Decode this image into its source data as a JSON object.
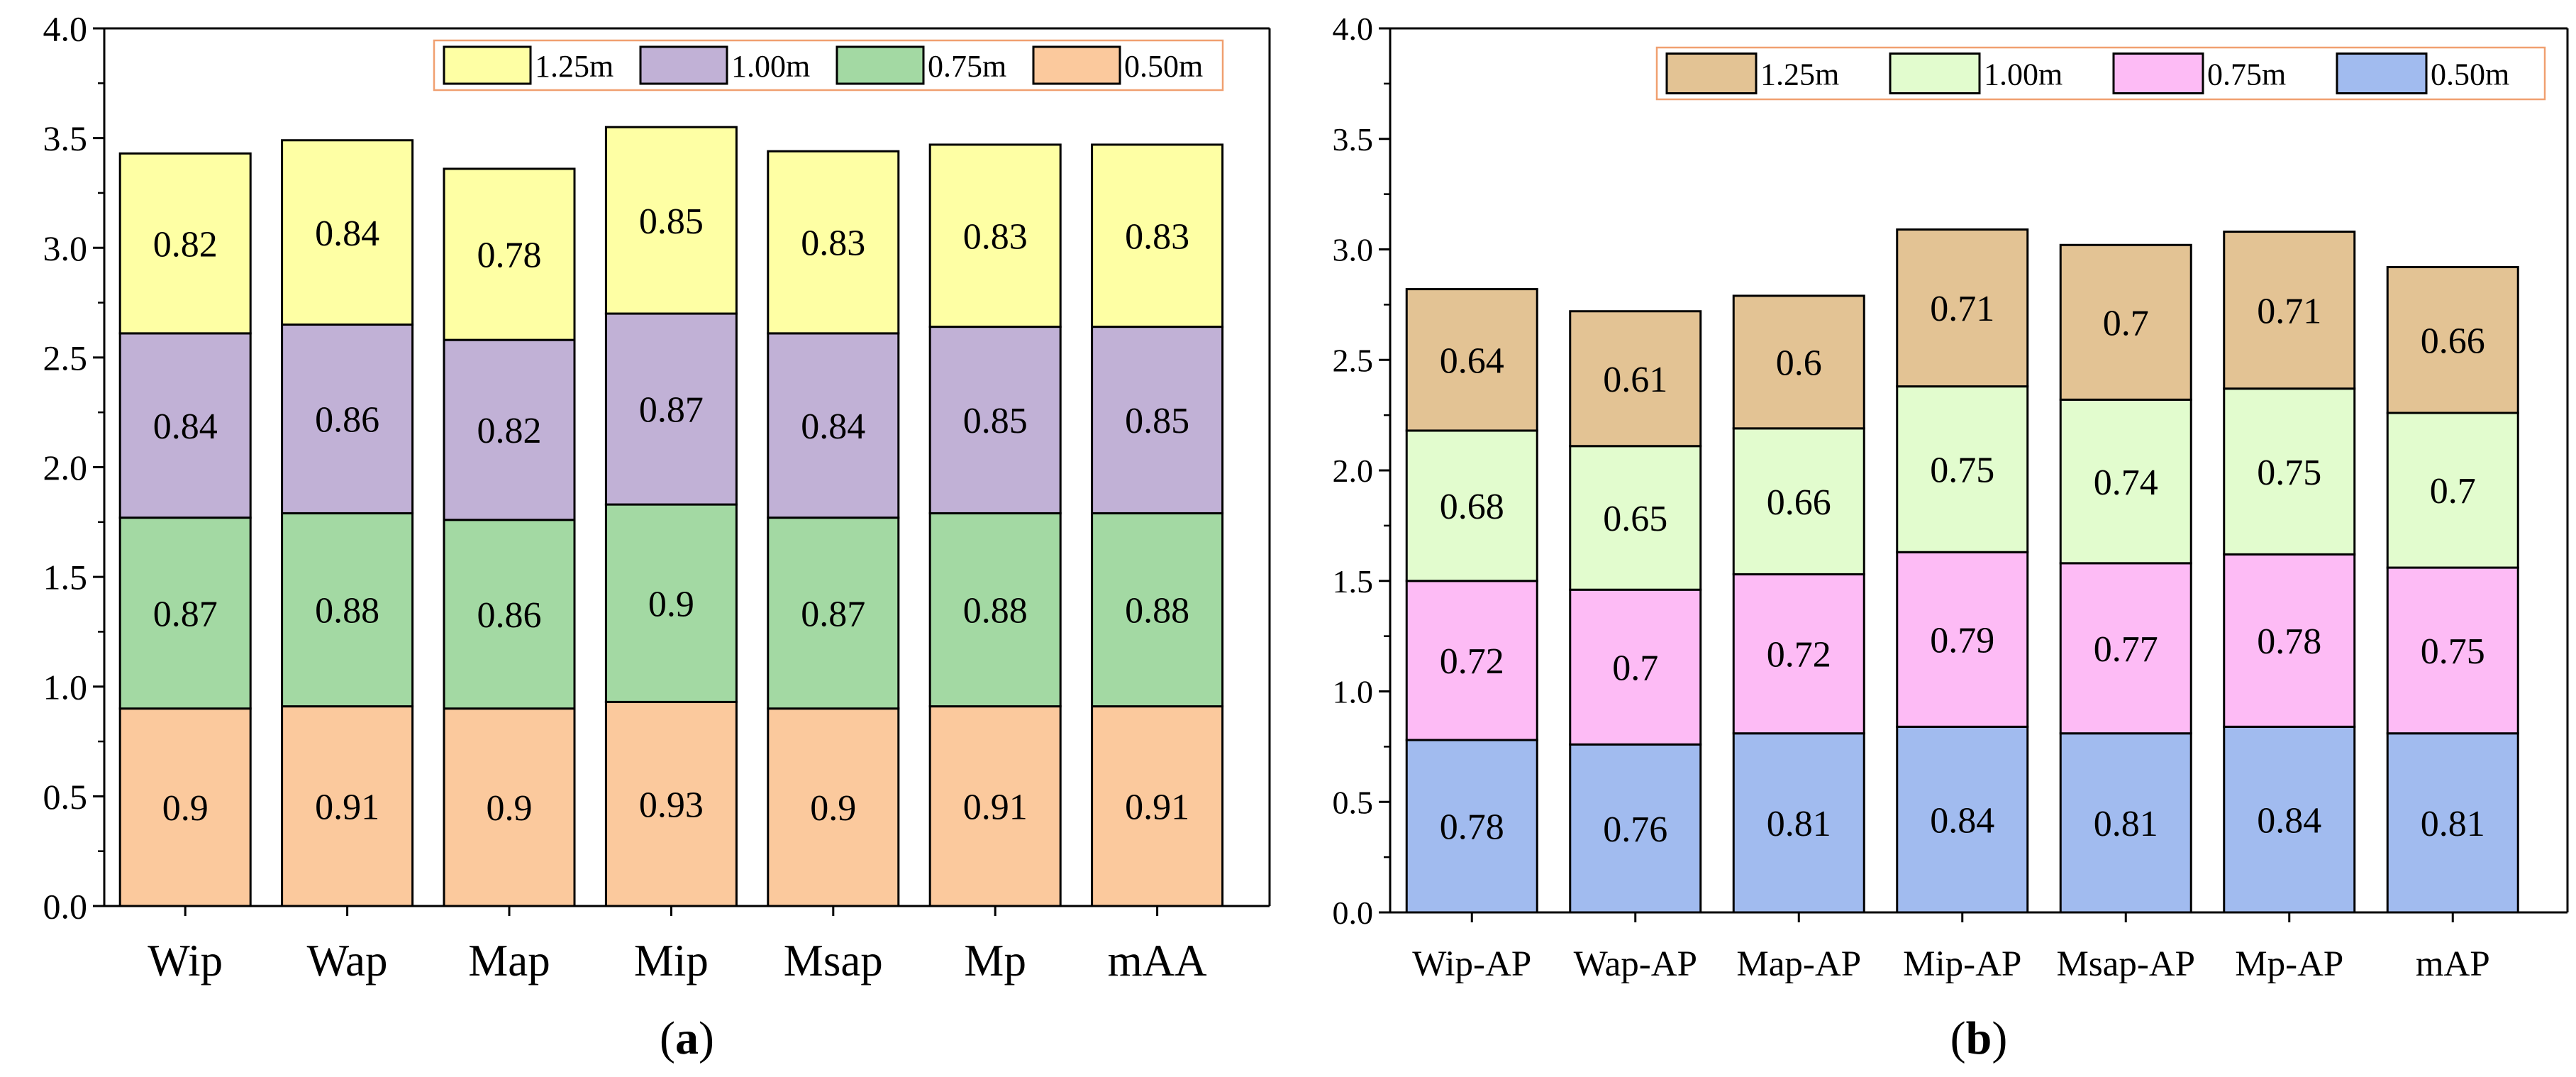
{
  "colors": {
    "a": [
      "#fbc99d",
      "#a3d9a3",
      "#c1b1d6",
      "#feffa4"
    ],
    "b": [
      "#a1bbef",
      "#fdbbf5",
      "#e2fcce",
      "#e3c394"
    ],
    "axis": "#000000",
    "legend_border": "#f0a070"
  },
  "chart_data": [
    {
      "type": "bar",
      "stacked": true,
      "panel_label": "(a)",
      "categories": [
        "Wip",
        "Wap",
        "Map",
        "Mip",
        "Msap",
        "Mp",
        "mAA"
      ],
      "series": [
        {
          "name": "0.50m",
          "values": [
            0.9,
            0.91,
            0.9,
            0.93,
            0.9,
            0.91,
            0.91
          ]
        },
        {
          "name": "0.75m",
          "values": [
            0.87,
            0.88,
            0.86,
            0.9,
            0.87,
            0.88,
            0.88
          ]
        },
        {
          "name": "1.00m",
          "values": [
            0.84,
            0.86,
            0.82,
            0.87,
            0.84,
            0.85,
            0.85
          ]
        },
        {
          "name": "1.25m",
          "values": [
            0.82,
            0.84,
            0.78,
            0.85,
            0.83,
            0.83,
            0.83
          ]
        }
      ],
      "legend_order": [
        "1.25m",
        "1.00m",
        "0.75m",
        "0.50m"
      ],
      "legend": "top-right",
      "ylim": [
        0,
        4.0
      ],
      "yticks": [
        "0.0",
        "0.5",
        "1.0",
        "1.5",
        "2.0",
        "2.5",
        "3.0",
        "3.5",
        "4.0"
      ],
      "xlabel": "",
      "ylabel": ""
    },
    {
      "type": "bar",
      "stacked": true,
      "panel_label": "(b)",
      "categories": [
        "Wip-AP",
        "Wap-AP",
        "Map-AP",
        "Mip-AP",
        "Msap-AP",
        "Mp-AP",
        "mAP"
      ],
      "series": [
        {
          "name": "0.50m",
          "values": [
            0.78,
            0.76,
            0.81,
            0.84,
            0.81,
            0.84,
            0.81
          ]
        },
        {
          "name": "0.75m",
          "values": [
            0.72,
            0.7,
            0.72,
            0.79,
            0.77,
            0.78,
            0.75
          ]
        },
        {
          "name": "1.00m",
          "values": [
            0.68,
            0.65,
            0.66,
            0.75,
            0.74,
            0.75,
            0.7
          ]
        },
        {
          "name": "1.25m",
          "values": [
            0.64,
            0.61,
            0.6,
            0.71,
            0.7,
            0.71,
            0.66
          ]
        }
      ],
      "legend_order": [
        "1.25m",
        "1.00m",
        "0.75m",
        "0.50m"
      ],
      "legend": "top-right",
      "ylim": [
        0,
        4.0
      ],
      "yticks": [
        "0.0",
        "0.5",
        "1.0",
        "1.5",
        "2.0",
        "2.5",
        "3.0",
        "3.5",
        "4.0"
      ],
      "xlabel": "",
      "ylabel": ""
    }
  ]
}
